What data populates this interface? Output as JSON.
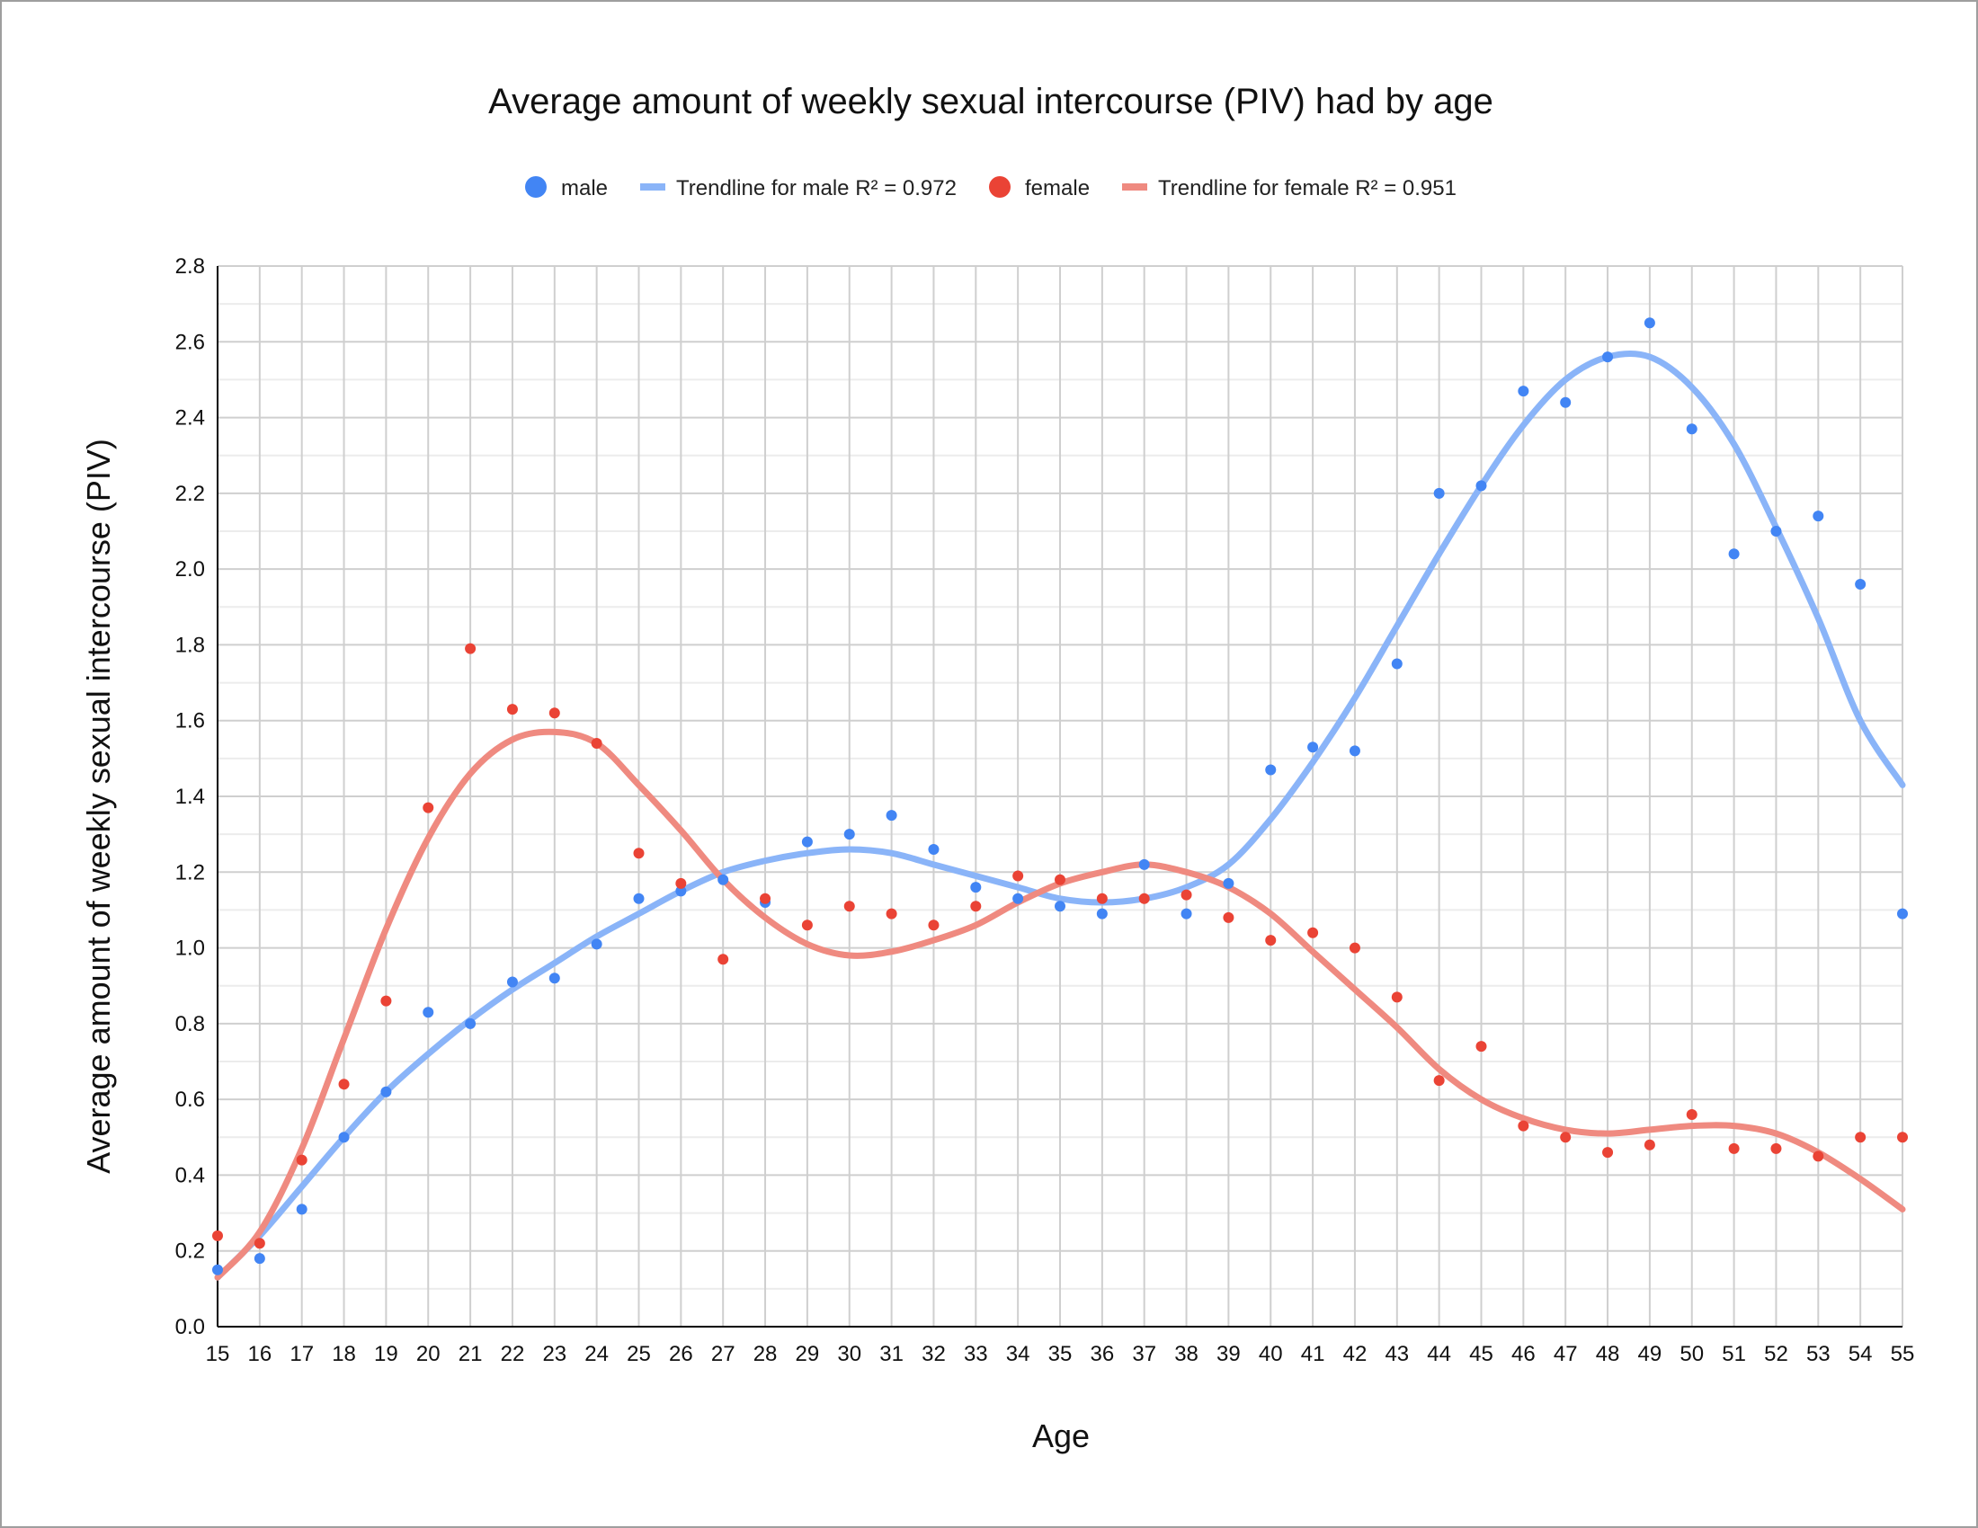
{
  "chart_data": {
    "type": "scatter",
    "title": "Average amount of weekly sexual intercourse (PIV) had by age",
    "xlabel": "Age",
    "ylabel": "Average amount of weekly sexual intercourse (PIV)",
    "xlim": [
      15,
      55
    ],
    "ylim": [
      0,
      2.8
    ],
    "x_ticks": [
      15,
      16,
      17,
      18,
      19,
      20,
      21,
      22,
      23,
      24,
      25,
      26,
      27,
      28,
      29,
      30,
      31,
      32,
      33,
      34,
      35,
      36,
      37,
      38,
      39,
      40,
      41,
      42,
      43,
      44,
      45,
      46,
      47,
      48,
      49,
      50,
      51,
      52,
      53,
      54,
      55
    ],
    "y_ticks": [
      "0.0",
      "0.2",
      "0.4",
      "0.6",
      "0.8",
      "1.0",
      "1.2",
      "1.4",
      "1.6",
      "1.8",
      "2.0",
      "2.2",
      "2.4",
      "2.6",
      "2.8"
    ],
    "grid": true,
    "legend_position": "top",
    "legend": [
      {
        "label": "male",
        "kind": "marker",
        "color": "#4285f4"
      },
      {
        "label": "Trendline for male R² = 0.972",
        "kind": "line",
        "color": "#8ab4f8"
      },
      {
        "label": "female",
        "kind": "marker",
        "color": "#ea4335"
      },
      {
        "label": "Trendline for female R² = 0.951",
        "kind": "line",
        "color": "#ef8a80"
      }
    ],
    "series": [
      {
        "name": "male",
        "color": "#4285f4",
        "x": [
          15,
          16,
          17,
          18,
          19,
          20,
          21,
          22,
          23,
          24,
          25,
          26,
          27,
          28,
          29,
          30,
          31,
          32,
          33,
          34,
          35,
          36,
          37,
          38,
          39,
          40,
          41,
          42,
          43,
          44,
          45,
          46,
          47,
          48,
          49,
          50,
          51,
          52,
          53,
          54,
          55
        ],
        "y": [
          0.15,
          0.18,
          0.31,
          0.5,
          0.62,
          0.83,
          0.8,
          0.91,
          0.92,
          1.01,
          1.13,
          1.15,
          1.18,
          1.12,
          1.28,
          1.3,
          1.35,
          1.26,
          1.16,
          1.13,
          1.11,
          1.09,
          1.22,
          1.09,
          1.17,
          1.47,
          1.53,
          1.52,
          1.75,
          2.2,
          2.22,
          2.47,
          2.44,
          2.56,
          2.65,
          2.37,
          2.04,
          2.1,
          2.14,
          1.96,
          1.09
        ]
      },
      {
        "name": "female",
        "color": "#ea4335",
        "x": [
          15,
          16,
          17,
          18,
          19,
          20,
          21,
          22,
          23,
          24,
          25,
          26,
          27,
          28,
          29,
          30,
          31,
          32,
          33,
          34,
          35,
          36,
          37,
          38,
          39,
          40,
          41,
          42,
          43,
          44,
          45,
          46,
          47,
          48,
          49,
          50,
          51,
          52,
          53,
          54,
          55
        ],
        "y": [
          0.24,
          0.22,
          0.44,
          0.64,
          0.86,
          1.37,
          1.79,
          1.63,
          1.62,
          1.54,
          1.25,
          1.17,
          0.97,
          1.13,
          1.06,
          1.11,
          1.09,
          1.06,
          1.11,
          1.19,
          1.18,
          1.13,
          1.13,
          1.14,
          1.08,
          1.02,
          1.04,
          1.0,
          0.87,
          0.65,
          0.74,
          0.53,
          0.5,
          0.46,
          0.48,
          0.56,
          0.47,
          0.47,
          0.45,
          0.5,
          0.5
        ]
      }
    ],
    "trendlines": [
      {
        "name": "Trendline for male R² = 0.972",
        "color": "#8ab4f8",
        "x": [
          15,
          16,
          17,
          18,
          19,
          20,
          21,
          22,
          23,
          24,
          25,
          26,
          27,
          28,
          29,
          30,
          31,
          32,
          33,
          34,
          35,
          36,
          37,
          38,
          39,
          40,
          41,
          42,
          43,
          44,
          45,
          46,
          47,
          48,
          49,
          50,
          51,
          52,
          53,
          54,
          55
        ],
        "y": [
          0.13,
          0.24,
          0.37,
          0.5,
          0.62,
          0.72,
          0.81,
          0.89,
          0.96,
          1.03,
          1.09,
          1.15,
          1.2,
          1.23,
          1.25,
          1.26,
          1.25,
          1.22,
          1.19,
          1.16,
          1.13,
          1.12,
          1.13,
          1.16,
          1.22,
          1.34,
          1.49,
          1.66,
          1.85,
          2.04,
          2.22,
          2.38,
          2.5,
          2.56,
          2.56,
          2.48,
          2.33,
          2.11,
          1.87,
          1.6,
          1.43
        ]
      },
      {
        "name": "Trendline for female R² = 0.951",
        "color": "#ef8a80",
        "x": [
          15,
          16,
          17,
          18,
          19,
          20,
          21,
          22,
          23,
          24,
          25,
          26,
          27,
          28,
          29,
          30,
          31,
          32,
          33,
          34,
          35,
          36,
          37,
          38,
          39,
          40,
          41,
          42,
          43,
          44,
          45,
          46,
          47,
          48,
          49,
          50,
          51,
          52,
          53,
          54,
          55
        ],
        "y": [
          0.13,
          0.25,
          0.47,
          0.76,
          1.05,
          1.29,
          1.46,
          1.55,
          1.57,
          1.54,
          1.43,
          1.31,
          1.18,
          1.08,
          1.01,
          0.98,
          0.99,
          1.02,
          1.06,
          1.12,
          1.17,
          1.2,
          1.22,
          1.2,
          1.16,
          1.09,
          0.99,
          0.89,
          0.79,
          0.68,
          0.6,
          0.55,
          0.52,
          0.51,
          0.52,
          0.53,
          0.53,
          0.51,
          0.46,
          0.39,
          0.31
        ]
      }
    ]
  }
}
